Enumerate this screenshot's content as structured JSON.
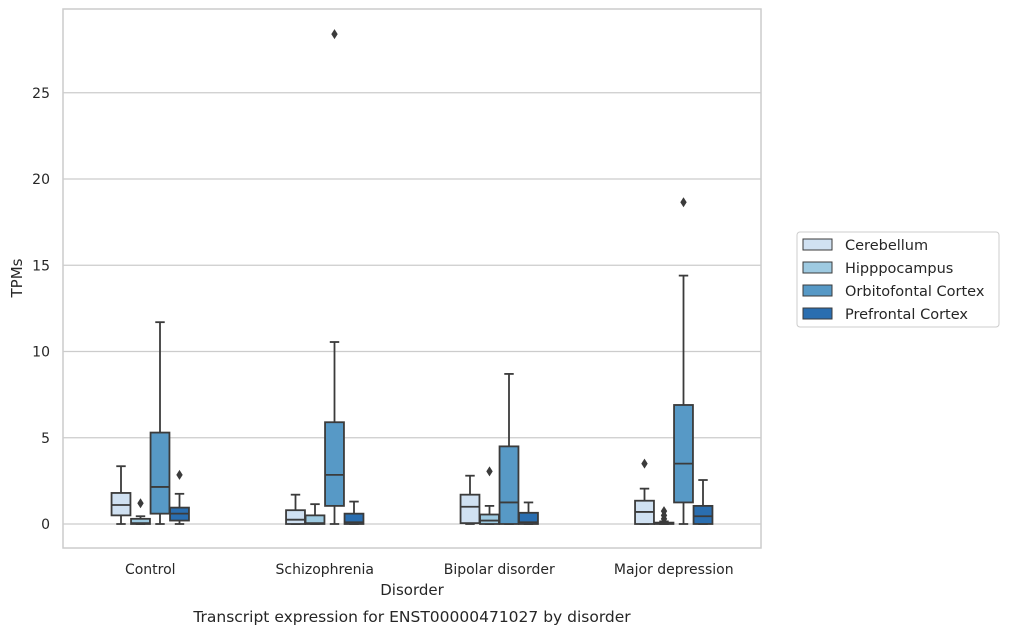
{
  "chart_data": {
    "type": "box",
    "xlabel": "Disorder",
    "ylabel": "TPMs",
    "caption": "Transcript expression for ENST00000471027 by disorder",
    "ylim": [
      -1.35,
      29.8
    ],
    "yticks": [
      0,
      5,
      10,
      15,
      20,
      25
    ],
    "grid": "horizontal",
    "legend_position": "right",
    "categories": [
      "Control",
      "Schizophrenia",
      "Bipolar disorder",
      "Major depression"
    ],
    "series": [
      {
        "name": "Cerebellum",
        "color": "#d0e1f2",
        "boxes": [
          {
            "whislo": 0.0,
            "q1": 0.5,
            "med": 1.1,
            "q3": 1.8,
            "whishi": 3.35,
            "fliers": []
          },
          {
            "whislo": 0.0,
            "q1": 0.0,
            "med": 0.25,
            "q3": 0.8,
            "whishi": 1.7,
            "fliers": []
          },
          {
            "whislo": 0.0,
            "q1": 0.05,
            "med": 1.0,
            "q3": 1.7,
            "whishi": 2.8,
            "fliers": []
          },
          {
            "whislo": 0.0,
            "q1": 0.0,
            "med": 0.7,
            "q3": 1.35,
            "whishi": 2.05,
            "fliers": [
              3.5
            ]
          }
        ]
      },
      {
        "name": "Hipppocampus",
        "color": "#9ecae1",
        "boxes": [
          {
            "whislo": 0.0,
            "q1": 0.0,
            "med": 0.05,
            "q3": 0.3,
            "whishi": 0.45,
            "fliers": [
              1.2
            ]
          },
          {
            "whislo": 0.0,
            "q1": 0.0,
            "med": 0.05,
            "q3": 0.5,
            "whishi": 1.15,
            "fliers": []
          },
          {
            "whislo": 0.0,
            "q1": 0.0,
            "med": 0.2,
            "q3": 0.55,
            "whishi": 1.05,
            "fliers": [
              3.05
            ]
          },
          {
            "whislo": 0.0,
            "q1": 0.0,
            "med": 0.02,
            "q3": 0.08,
            "whishi": 0.15,
            "fliers": [
              0.3,
              0.5,
              0.75
            ]
          }
        ]
      },
      {
        "name": "Orbitofontal Cortex",
        "color": "#5799c6",
        "boxes": [
          {
            "whislo": 0.0,
            "q1": 0.6,
            "med": 2.15,
            "q3": 5.3,
            "whishi": 11.7,
            "fliers": []
          },
          {
            "whislo": 0.0,
            "q1": 1.05,
            "med": 2.85,
            "q3": 5.9,
            "whishi": 10.55,
            "fliers": [
              28.4
            ]
          },
          {
            "whislo": 0.0,
            "q1": 0.0,
            "med": 1.25,
            "q3": 4.5,
            "whishi": 8.7,
            "fliers": []
          },
          {
            "whislo": 0.0,
            "q1": 1.25,
            "med": 3.5,
            "q3": 6.9,
            "whishi": 14.4,
            "fliers": [
              18.65
            ]
          }
        ]
      },
      {
        "name": "Prefrontal Cortex",
        "color": "#2a6eb0",
        "boxes": [
          {
            "whislo": 0.0,
            "q1": 0.2,
            "med": 0.6,
            "q3": 0.95,
            "whishi": 1.75,
            "fliers": [
              2.85
            ]
          },
          {
            "whislo": 0.0,
            "q1": 0.0,
            "med": 0.1,
            "q3": 0.6,
            "whishi": 1.3,
            "fliers": []
          },
          {
            "whislo": 0.0,
            "q1": 0.0,
            "med": 0.1,
            "q3": 0.65,
            "whishi": 1.25,
            "fliers": []
          },
          {
            "whislo": 0.0,
            "q1": 0.0,
            "med": 0.45,
            "q3": 1.05,
            "whishi": 2.55,
            "fliers": []
          }
        ]
      }
    ]
  }
}
